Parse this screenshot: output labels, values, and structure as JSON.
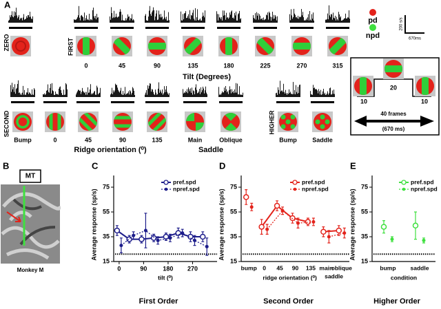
{
  "panel_a": {
    "label": "A",
    "zero_label": "ZERO",
    "first_label": "FIRST",
    "first_ticks": [
      "0",
      "45",
      "90",
      "135",
      "180",
      "225",
      "270",
      "315"
    ],
    "first_axis": "Tilt (Degrees)",
    "second_label": "SECOND",
    "second_ticks": [
      "Bump",
      "0",
      "45",
      "90",
      "135",
      "Main",
      "Oblique"
    ],
    "second_axis": "Ridge orientation (⁰)",
    "second_group": "Saddle",
    "higher_label": "HIGHER",
    "higher_ticks": [
      "Bump",
      "Saddle"
    ],
    "legend": [
      "pd",
      "npd"
    ],
    "scale_y": "200 s/s",
    "scale_x": "670ms"
  },
  "diagram": {
    "peak": "20",
    "left": "10",
    "right": "10",
    "frames": "40 frames",
    "duration": "(670 ms)"
  },
  "panel_b": {
    "label": "B",
    "region": "MT",
    "caption": "Monkey M"
  },
  "chart_data": [
    {
      "type": "line",
      "panel": "C",
      "title": "First Order",
      "xlabel": "tilt (⁰)",
      "ylabel": "Average response (sp/s)",
      "x": [
        0,
        45,
        90,
        135,
        180,
        225,
        270,
        315
      ],
      "xlim": [
        -20,
        360
      ],
      "xticks": [
        0,
        90,
        180,
        270
      ],
      "ylim": [
        15,
        80
      ],
      "yticks": [
        15,
        35,
        55,
        75
      ],
      "baseline": 21,
      "connected": [
        [
          0,
          7
        ]
      ],
      "series": [
        {
          "name": "pref.spd",
          "color": "#1c1c8a",
          "style": "solid",
          "marker": "open",
          "values": [
            40,
            33,
            33,
            34,
            35,
            38,
            35,
            35
          ],
          "errors": [
            4,
            3,
            3,
            3,
            3,
            4,
            4,
            4
          ]
        },
        {
          "name": "npref.spd",
          "color": "#1c1c8a",
          "style": "dotted",
          "marker": "filled",
          "values": [
            28,
            36,
            40,
            32,
            34,
            38,
            32,
            27
          ],
          "errors": [
            6,
            3,
            14,
            3,
            3,
            3,
            4,
            7
          ]
        }
      ]
    },
    {
      "type": "line",
      "panel": "D",
      "title": "Second Order",
      "xlabel": "ridge orientation (⁰)",
      "ylabel": "Average response (sp/s)",
      "categories": [
        "bump",
        "0",
        "45",
        "90",
        "135",
        "main",
        "oblique"
      ],
      "annotations": [
        "saddle"
      ],
      "ylim": [
        15,
        80
      ],
      "yticks": [
        15,
        35,
        55,
        75
      ],
      "baseline": 21,
      "connected": [
        [
          1,
          4
        ],
        [
          5,
          6
        ]
      ],
      "series": [
        {
          "name": "pref.spd",
          "color": "#e3231b",
          "style": "solid",
          "marker": "open",
          "values": [
            67,
            43,
            60,
            50,
            47,
            39,
            40
          ],
          "errors": [
            6,
            6,
            4,
            4,
            3,
            4,
            4
          ]
        },
        {
          "name": "npref.spd",
          "color": "#e3231b",
          "style": "dotted",
          "marker": "filled",
          "values": [
            59,
            41,
            56,
            46,
            47,
            35,
            38
          ],
          "errors": [
            3,
            4,
            3,
            4,
            3,
            5,
            4
          ]
        }
      ]
    },
    {
      "type": "line",
      "panel": "E",
      "title": "Higher Order",
      "xlabel": "condition",
      "ylabel": "Average response (sp/s)",
      "categories": [
        "bump",
        "saddle"
      ],
      "ylim": [
        15,
        80
      ],
      "yticks": [
        15,
        35,
        55,
        75
      ],
      "baseline": 21,
      "connected": [],
      "series": [
        {
          "name": "pref.spd",
          "color": "#3fe03f",
          "style": "solid",
          "marker": "open",
          "values": [
            43,
            44
          ],
          "errors": [
            5,
            11
          ]
        },
        {
          "name": "npref.spd",
          "color": "#3fe03f",
          "style": "dotted",
          "marker": "filled",
          "values": [
            33,
            32
          ],
          "errors": [
            2,
            2
          ]
        }
      ]
    }
  ]
}
